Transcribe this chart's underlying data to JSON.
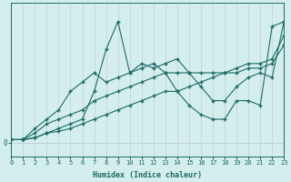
{
  "xlabel": "Humidex (Indice chaleur)",
  "background_color": "#d4eded",
  "line_color": "#1c6b65",
  "grid_color_v": "#c4d8d8",
  "grid_color_h": "#b8cccc",
  "x_values": [
    0,
    1,
    2,
    3,
    4,
    5,
    6,
    7,
    8,
    9,
    10,
    11,
    12,
    13,
    14,
    15,
    16,
    17,
    18,
    19,
    20,
    21,
    22,
    23
  ],
  "series1": [
    0.3,
    0.3,
    0.5,
    1.0,
    1.5,
    2.0,
    2.5,
    5.5,
    10.0,
    13.0,
    7.5,
    8.0,
    8.5,
    7.5,
    5.5,
    4.0,
    3.0,
    2.5,
    2.5,
    4.5,
    4.5,
    4.0,
    12.5,
    13.0
  ],
  "series2": [
    0.3,
    0.3,
    1.5,
    2.5,
    3.5,
    5.5,
    6.5,
    7.5,
    6.5,
    7.0,
    7.5,
    8.5,
    8.0,
    8.5,
    9.0,
    7.5,
    6.0,
    4.5,
    4.5,
    6.0,
    7.0,
    7.5,
    7.0,
    13.0
  ],
  "series3": [
    0.3,
    0.3,
    1.0,
    2.0,
    2.5,
    3.0,
    3.5,
    4.5,
    5.0,
    5.5,
    6.0,
    6.5,
    7.0,
    7.5,
    7.5,
    7.5,
    7.5,
    7.5,
    7.5,
    8.0,
    8.5,
    8.5,
    9.0,
    11.5
  ],
  "series4": [
    0.3,
    0.3,
    0.5,
    1.0,
    1.2,
    1.5,
    2.0,
    2.5,
    3.0,
    3.5,
    4.0,
    4.5,
    5.0,
    5.5,
    5.5,
    6.0,
    6.5,
    7.0,
    7.5,
    7.5,
    8.0,
    8.0,
    8.5,
    10.5
  ],
  "ylim": [
    -1.5,
    15
  ],
  "ytick_val": 0,
  "xlim": [
    0,
    23
  ]
}
